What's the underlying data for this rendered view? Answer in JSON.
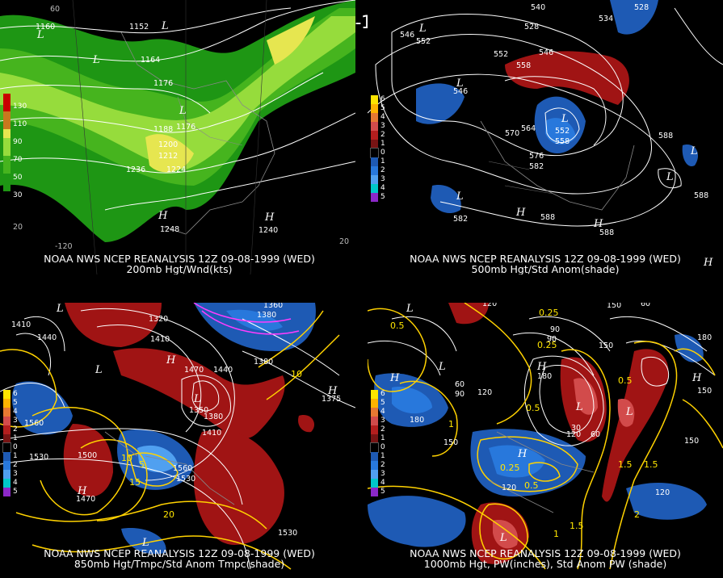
{
  "main_title": "12Z 09-08-1999 (WED)",
  "panels": [
    {
      "caption_line1": "NOAA NWS NCEP REANALYSIS 12Z 09-08-1999 (WED)",
      "caption_line2": "200mb Hgt/Wnd(kts)",
      "legend": [
        "130",
        "110",
        "90",
        "70",
        "50",
        "30"
      ],
      "legend_colors": [
        "#c80000",
        "#c8781e",
        "#e6e650",
        "#96dc3c",
        "#46b41e",
        "#1e9614"
      ],
      "contour_labels": [
        "1160",
        "1152",
        "1164",
        "1176",
        "1188",
        "1176",
        "1200",
        "1212",
        "1236",
        "1224",
        "1248",
        "1240"
      ],
      "highs_lows": [
        "L",
        "L",
        "L",
        "L",
        "H",
        "H"
      ],
      "lon_labels": [
        "-120",
        "60",
        "20",
        "20"
      ]
    },
    {
      "caption_line1": "NOAA NWS NCEP REANALYSIS 12Z 09-08-1999 (WED)",
      "caption_line2": "500mb Hgt/Std Anom(shade)",
      "legend": [
        "6",
        "5",
        "4",
        "3",
        "2",
        "1",
        "0",
        "1",
        "2",
        "3",
        "4",
        "5"
      ],
      "legend_colors": [
        "#ffe600",
        "#ffb400",
        "#e67832",
        "#d24b4b",
        "#b41e1e",
        "#781414",
        "#000000",
        "#1e5ab4",
        "#2878dc",
        "#50a0f0",
        "#00c8c8",
        "#8c28c8"
      ],
      "contour_labels": [
        "540",
        "534",
        "528",
        "546",
        "552",
        "546",
        "528",
        "552",
        "558",
        "546",
        "564",
        "552",
        "558",
        "570",
        "576",
        "582",
        "588",
        "582",
        "588",
        "588",
        "588"
      ],
      "highs_lows": [
        "L",
        "L",
        "L",
        "L",
        "L",
        "L",
        "H",
        "H",
        "H"
      ]
    },
    {
      "caption_line1": "NOAA NWS NCEP REANALYSIS 12Z 09-08-1999 (WED)",
      "caption_line2": "850mb Hgt/Tmpc/Std Anom Tmpc(shade)",
      "legend": [
        "6",
        "5",
        "4",
        "3",
        "2",
        "1",
        "0",
        "1",
        "2",
        "3",
        "4",
        "5"
      ],
      "legend_colors": [
        "#ffe600",
        "#ffb400",
        "#e67832",
        "#d24b4b",
        "#b41e1e",
        "#781414",
        "#000000",
        "#1e5ab4",
        "#2878dc",
        "#50a0f0",
        "#00c8c8",
        "#8c28c8"
      ],
      "contour_labels": [
        "1360",
        "1410",
        "1440",
        "1410",
        "1320",
        "1380",
        "1470",
        "1440",
        "1380",
        "1350",
        "1380",
        "1410",
        "1560",
        "1530",
        "1500",
        "1560",
        "1530",
        "1530",
        "1470",
        "1375"
      ],
      "yellow_labels": [
        "10",
        "5",
        "15",
        "20",
        "10"
      ],
      "highs_lows": [
        "L",
        "L",
        "L",
        "L",
        "H",
        "H",
        "H"
      ]
    },
    {
      "caption_line1": "NOAA NWS NCEP REANALYSIS 12Z 09-08-1999 (WED)",
      "caption_line2": "1000mb Hgt, PW(inches), Std Anom PW (shade)",
      "legend": [
        "6",
        "5",
        "4",
        "3",
        "2",
        "1",
        "0",
        "1",
        "2",
        "3",
        "4",
        "5"
      ],
      "legend_colors": [
        "#ffe600",
        "#ffb400",
        "#e67832",
        "#d24b4b",
        "#b41e1e",
        "#781414",
        "#000000",
        "#1e5ab4",
        "#2878dc",
        "#50a0f0",
        "#00c8c8",
        "#8c28c8"
      ],
      "contour_labels": [
        "120",
        "150",
        "60",
        "90",
        "180",
        "60",
        "90",
        "120",
        "180",
        "150",
        "120",
        "150",
        "180",
        "90",
        "150",
        "120",
        "30",
        "60",
        "120",
        "150"
      ],
      "yellow_labels": [
        "0.5",
        "0.25",
        "0.25",
        "0.5",
        "0.5",
        "1.5",
        "0.25",
        "1",
        "0.5",
        "1.5",
        "2",
        "1.5",
        "1"
      ],
      "highs_lows": [
        "L",
        "L",
        "L",
        "L",
        "L",
        "H",
        "H",
        "H",
        "H"
      ]
    }
  ]
}
